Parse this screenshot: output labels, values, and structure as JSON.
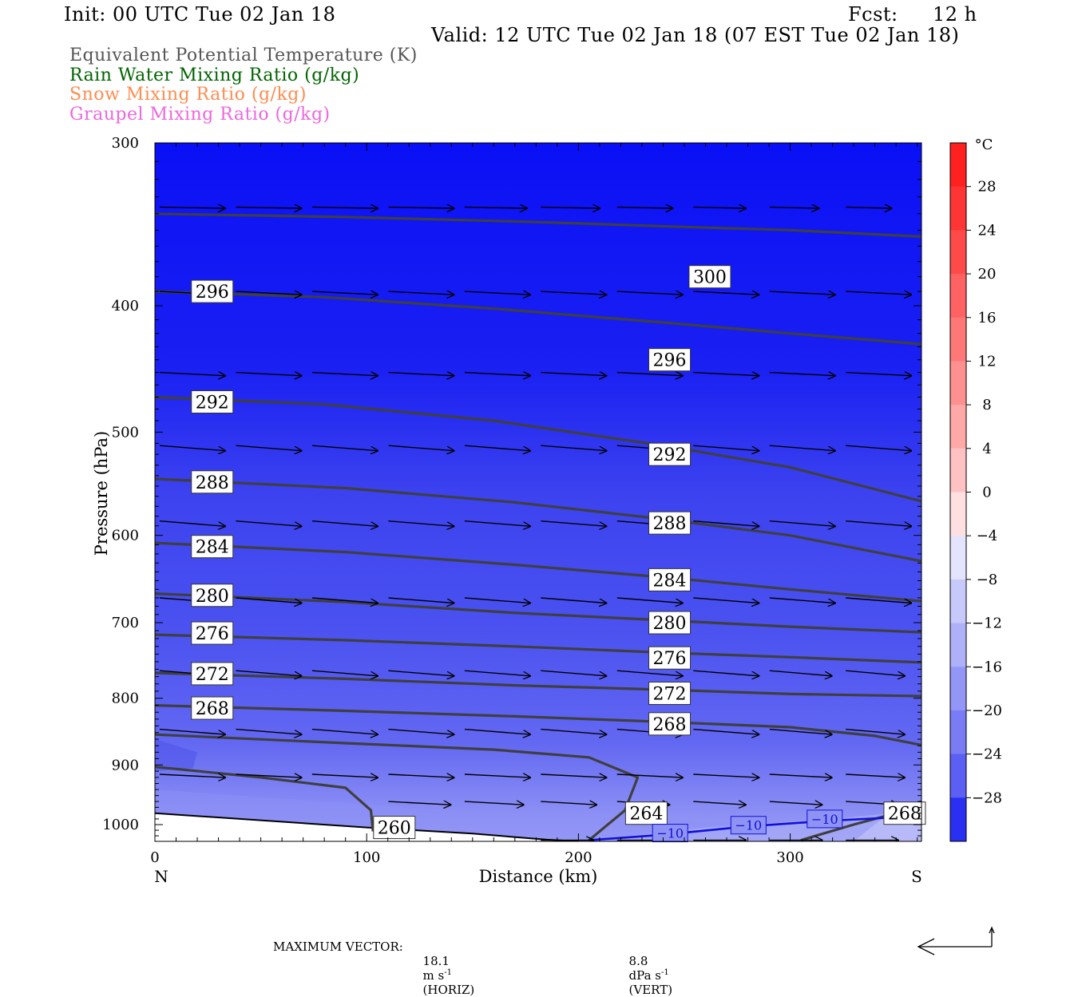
{
  "header": {
    "init": "Init: 00 UTC Tue 02 Jan 18",
    "fcst_label": "Fcst:",
    "fcst_value": "12 h",
    "valid": "Valid: 12 UTC Tue 02 Jan 18 (07 EST Tue 02 Jan 18)"
  },
  "legend": [
    {
      "label": "Equivalent Potential Temperature (K)",
      "color": "#555555"
    },
    {
      "label": "Rain Water Mixing Ratio (g/kg)",
      "color": "#006400"
    },
    {
      "label": "Snow Mixing Ratio (g/kg)",
      "color": "#ff8c50"
    },
    {
      "label": "Graupel Mixing Ratio (g/kg)",
      "color": "#ee66dd"
    }
  ],
  "footer": {
    "max_vector_label": "MAXIMUM VECTOR:",
    "horiz_value": "18.1",
    "horiz_unit": "m s",
    "horiz_exp": "-1",
    "horiz_tag": "(HORIZ)",
    "vert_value": "8.8",
    "vert_unit": "dPa s",
    "vert_exp": "-1",
    "vert_tag": "(VERT)"
  },
  "chart_data": {
    "type": "heatmap",
    "xlabel": "Distance (km)",
    "ylabel": "Pressure (hPa)",
    "x_ticks": [
      0,
      100,
      200,
      300
    ],
    "xlim": [
      0,
      362
    ],
    "y_ticks": [
      300,
      400,
      500,
      600,
      700,
      800,
      900,
      1000
    ],
    "ylim": [
      300,
      1030
    ],
    "y_scale": "log",
    "x_end_labels": {
      "left": "N",
      "right": "S"
    },
    "colorbar": {
      "unit": "°C",
      "tick_labels": [
        "28",
        "24",
        "20",
        "16",
        "12",
        "8",
        "4",
        "0",
        "−4",
        "−8",
        "−12",
        "−16",
        "−20",
        "−24",
        "−28"
      ],
      "levels": [
        28,
        24,
        20,
        16,
        12,
        8,
        4,
        0,
        -4,
        -8,
        -12,
        -16,
        -20,
        -24,
        -28
      ]
    },
    "theta_e_contours": [
      {
        "label": "300",
        "points": [
          [
            0,
            340
          ],
          [
            90,
            342
          ],
          [
            180,
            345
          ],
          [
            250,
            348
          ],
          [
            300,
            350
          ],
          [
            362,
            354
          ]
        ]
      },
      {
        "label": "296",
        "points": [
          [
            0,
            390
          ],
          [
            80,
            394
          ],
          [
            160,
            402
          ],
          [
            240,
            412
          ],
          [
            300,
            420
          ],
          [
            362,
            428
          ]
        ]
      },
      {
        "label": "292",
        "points": [
          [
            0,
            470
          ],
          [
            80,
            476
          ],
          [
            160,
            490
          ],
          [
            240,
            512
          ],
          [
            300,
            532
          ],
          [
            362,
            565
          ]
        ]
      },
      {
        "label": "288",
        "points": [
          [
            0,
            543
          ],
          [
            90,
            552
          ],
          [
            170,
            566
          ],
          [
            240,
            583
          ],
          [
            300,
            600
          ],
          [
            362,
            628
          ]
        ]
      },
      {
        "label": "284",
        "points": [
          [
            0,
            608
          ],
          [
            90,
            618
          ],
          [
            170,
            632
          ],
          [
            240,
            646
          ],
          [
            300,
            660
          ],
          [
            362,
            674
          ]
        ]
      },
      {
        "label": "280",
        "points": [
          [
            0,
            665
          ],
          [
            90,
            675
          ],
          [
            170,
            688
          ],
          [
            240,
            697
          ],
          [
            300,
            705
          ],
          [
            362,
            712
          ]
        ]
      },
      {
        "label": "276",
        "points": [
          [
            0,
            715
          ],
          [
            90,
            722
          ],
          [
            170,
            730
          ],
          [
            240,
            738
          ],
          [
            300,
            744
          ],
          [
            362,
            751
          ]
        ]
      },
      {
        "label": "272",
        "points": [
          [
            0,
            765
          ],
          [
            90,
            773
          ],
          [
            170,
            782
          ],
          [
            240,
            788
          ],
          [
            300,
            794
          ],
          [
            362,
            797
          ]
        ]
      },
      {
        "label": "268",
        "points": [
          [
            0,
            810
          ],
          [
            90,
            818
          ],
          [
            170,
            826
          ],
          [
            240,
            834
          ],
          [
            300,
            842
          ],
          [
            340,
            855
          ],
          [
            362,
            869
          ]
        ]
      },
      {
        "label": "264",
        "points": [
          [
            0,
            853
          ],
          [
            90,
            866
          ],
          [
            160,
            876
          ],
          [
            205,
            888
          ],
          [
            228,
            920
          ],
          [
            222,
            975
          ],
          [
            205,
            1028
          ]
        ]
      },
      {
        "label": "260",
        "points": [
          [
            0,
            903
          ],
          [
            50,
            920
          ],
          [
            90,
            937
          ],
          [
            102,
            975
          ],
          [
            103,
            1012
          ]
        ]
      },
      {
        "label": "268",
        "points": [
          [
            305,
            1028
          ],
          [
            330,
            1000
          ],
          [
            350,
            980
          ],
          [
            362,
            960
          ]
        ]
      }
    ],
    "contour_labels": [
      {
        "text": "300",
        "x": 253,
        "p": 380
      },
      {
        "text": "296",
        "x": 18,
        "p": 390
      },
      {
        "text": "296",
        "x": 234,
        "p": 440
      },
      {
        "text": "292",
        "x": 18,
        "p": 474
      },
      {
        "text": "292",
        "x": 234,
        "p": 520
      },
      {
        "text": "288",
        "x": 18,
        "p": 546
      },
      {
        "text": "288",
        "x": 234,
        "p": 587
      },
      {
        "text": "284",
        "x": 18,
        "p": 612
      },
      {
        "text": "284",
        "x": 234,
        "p": 649
      },
      {
        "text": "280",
        "x": 18,
        "p": 667
      },
      {
        "text": "280",
        "x": 234,
        "p": 700
      },
      {
        "text": "276",
        "x": 18,
        "p": 713
      },
      {
        "text": "276",
        "x": 234,
        "p": 745
      },
      {
        "text": "272",
        "x": 18,
        "p": 766
      },
      {
        "text": "272",
        "x": 234,
        "p": 793
      },
      {
        "text": "268",
        "x": 18,
        "p": 814
      },
      {
        "text": "268",
        "x": 234,
        "p": 837
      },
      {
        "text": "264",
        "x": 223,
        "p": 980
      },
      {
        "text": "268",
        "x": 345,
        "p": 980
      },
      {
        "text": "260",
        "x": 104,
        "p": 1005
      }
    ],
    "temperature_contours": [
      {
        "label": "−10",
        "points": [
          [
            205,
            1028
          ],
          [
            240,
            1018
          ],
          [
            280,
            1003
          ],
          [
            320,
            993
          ],
          [
            362,
            985
          ]
        ]
      }
    ],
    "temperature_labels": [
      {
        "text": "−10",
        "x": 235,
        "p": 1015
      },
      {
        "text": "−10",
        "x": 272,
        "p": 1001
      },
      {
        "text": "−10",
        "x": 308,
        "p": 990
      }
    ],
    "terrain": [
      [
        0,
        980
      ],
      [
        100,
        1005
      ],
      [
        150,
        1016
      ],
      [
        185,
        1027
      ],
      [
        200,
        1030
      ]
    ],
    "wind_rows": [
      {
        "p": 336,
        "x": [
          0,
          36,
          72,
          108,
          144,
          180,
          216,
          252,
          288,
          324
        ],
        "u": [
          1.0,
          1.0,
          1.0,
          1.0,
          0.95,
          0.9,
          0.85,
          0.8,
          0.75,
          0.7
        ],
        "w": 0.02
      },
      {
        "p": 390,
        "x": [
          0,
          36,
          72,
          108,
          144,
          180,
          216,
          252,
          288,
          324
        ],
        "u": [
          1.0,
          1.0,
          1.0,
          1.0,
          1.0,
          1.0,
          1.0,
          1.0,
          1.0,
          1.0
        ],
        "w": 0.05
      },
      {
        "p": 450,
        "x": [
          0,
          36,
          72,
          108,
          144,
          180,
          216,
          252,
          288,
          324
        ],
        "u": [
          1.0,
          1.0,
          1.0,
          1.0,
          1.0,
          1.0,
          1.0,
          1.0,
          1.0,
          1.0
        ],
        "w": 0.05
      },
      {
        "p": 512,
        "x": [
          0,
          36,
          72,
          108,
          144,
          180,
          216,
          252,
          288,
          324
        ],
        "u": [
          1.0,
          1.0,
          1.0,
          1.0,
          1.0,
          1.0,
          1.0,
          1.0,
          1.0,
          1.0
        ],
        "w": 0.08
      },
      {
        "p": 585,
        "x": [
          0,
          36,
          72,
          108,
          144,
          180,
          216,
          252,
          288,
          324
        ],
        "u": [
          1.0,
          1.0,
          1.0,
          1.0,
          1.0,
          1.0,
          1.0,
          1.0,
          1.0,
          1.0
        ],
        "w": 0.08
      },
      {
        "p": 670,
        "x": [
          0,
          36,
          72,
          108,
          144,
          180,
          216,
          252,
          288,
          324
        ],
        "u": [
          1.0,
          1.0,
          1.0,
          1.0,
          1.0,
          1.0,
          1.0,
          1.0,
          1.0,
          1.0
        ],
        "w": 0.08
      },
      {
        "p": 762,
        "x": [
          0,
          36,
          72,
          108,
          144,
          180,
          216,
          252,
          288,
          324
        ],
        "u": [
          1.0,
          1.0,
          1.0,
          1.0,
          1.0,
          1.0,
          1.0,
          1.0,
          0.95,
          0.9
        ],
        "w": 0.08
      },
      {
        "p": 845,
        "x": [
          0,
          36,
          72,
          108,
          144,
          180,
          216,
          252,
          288,
          324
        ],
        "u": [
          1.0,
          1.0,
          1.0,
          1.0,
          1.0,
          1.0,
          1.0,
          1.0,
          0.95,
          0.9
        ],
        "w": 0.08
      },
      {
        "p": 915,
        "x": [
          0,
          36,
          72,
          108,
          144,
          180,
          216,
          252,
          288,
          324
        ],
        "u": [
          1.0,
          1.0,
          1.0,
          1.0,
          1.0,
          1.0,
          1.0,
          1.0,
          0.95,
          0.9
        ],
        "w": 0.05
      },
      {
        "p": 960,
        "x": [
          108,
          144,
          180,
          216,
          252,
          288,
          324
        ],
        "u": [
          0.95,
          0.9,
          0.85,
          0.8,
          0.8,
          0.8,
          0.8
        ],
        "w": 0.05
      },
      {
        "p": 1028,
        "x": [
          180,
          216,
          252,
          288,
          324
        ],
        "u": [
          0.8,
          0.8,
          0.8,
          0.8,
          0.8
        ],
        "w": 0.0
      }
    ]
  }
}
